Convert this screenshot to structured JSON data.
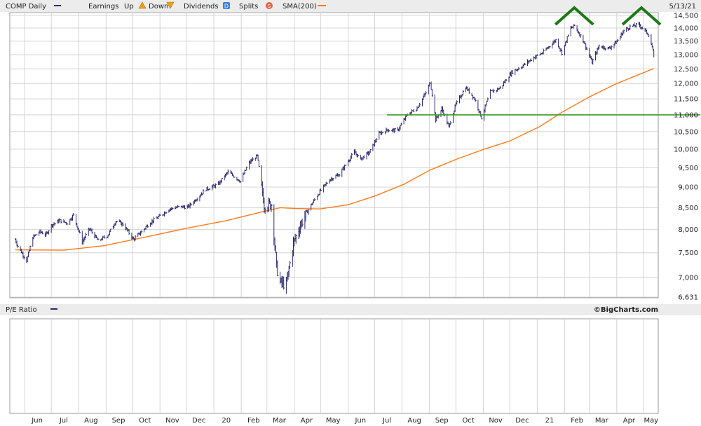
{
  "legend": {
    "series_label": "COMP Daily",
    "earnings_label": "Earnings",
    "earnings_up_label": "Up",
    "earnings_down_label": "Down",
    "dividends_label": "Dividends",
    "dividends_icon": "D",
    "splits_label": "Splits",
    "splits_icon": "S",
    "sma_label": "SMA(200)",
    "date": "5/13/21"
  },
  "pe_panel": {
    "label": "P/E Ratio",
    "credit": "©BigCharts.com"
  },
  "colors": {
    "price": "#2b2b6e",
    "sma": "#ff7a1a",
    "reference_line": "#3f9a2a",
    "top_marks": "#1a7a14",
    "grid": "#d4d4d4",
    "legend_bg": "#ececec",
    "earnings_up": "#f0a018",
    "earnings_down": "#f0a018",
    "dividends": "#3b7fe0",
    "splits": "#e0644a"
  },
  "chart_data": {
    "type": "line",
    "title": "COMP Daily",
    "ylim": [
      6631,
      14500
    ],
    "scale": "log",
    "y_ticks": [
      14500,
      14000,
      13500,
      13000,
      12500,
      12000,
      11500,
      11000,
      10500,
      10000,
      9500,
      9000,
      8500,
      8000,
      7500,
      7000,
      6631
    ],
    "y_tick_labels": [
      "14,500",
      "14,000",
      "13,500",
      "13,000",
      "12,500",
      "12,000",
      "11,500",
      "11,000",
      "10,500",
      "10,000",
      "9,500",
      "9,000",
      "8,500",
      "8,000",
      "7,500",
      "7,000",
      "6,631"
    ],
    "x_tick_labels": [
      "Jun",
      "Jul",
      "Aug",
      "Sep",
      "Oct",
      "Nov",
      "Dec",
      "20",
      "Feb",
      "Mar",
      "Apr",
      "May",
      "Jun",
      "Jul",
      "Aug",
      "Sep",
      "Oct",
      "Nov",
      "Dec",
      "21",
      "Feb",
      "Mar",
      "Apr",
      "May"
    ],
    "grid": true,
    "series": [
      {
        "name": "COMP Daily",
        "kind": "ohlc",
        "x": [
          "2019-05-21",
          "2019-05-24",
          "2019-06-03",
          "2019-06-10",
          "2019-06-18",
          "2019-06-25",
          "2019-07-01",
          "2019-07-10",
          "2019-07-19",
          "2019-07-26",
          "2019-08-05",
          "2019-08-13",
          "2019-08-23",
          "2019-09-03",
          "2019-09-12",
          "2019-09-20",
          "2019-10-02",
          "2019-10-11",
          "2019-10-21",
          "2019-10-31",
          "2019-11-11",
          "2019-11-22",
          "2019-12-03",
          "2019-12-13",
          "2019-12-23",
          "2020-01-06",
          "2020-01-17",
          "2020-01-31",
          "2020-02-10",
          "2020-02-19",
          "2020-02-27",
          "2020-03-06",
          "2020-03-12",
          "2020-03-16",
          "2020-03-23",
          "2020-03-31",
          "2020-04-09",
          "2020-04-20",
          "2020-04-30",
          "2020-05-11",
          "2020-05-22",
          "2020-06-08",
          "2020-06-15",
          "2020-06-25",
          "2020-07-06",
          "2020-07-15",
          "2020-07-27",
          "2020-08-07",
          "2020-08-18",
          "2020-08-28",
          "2020-09-02",
          "2020-09-08",
          "2020-09-15",
          "2020-09-23",
          "2020-10-01",
          "2020-10-12",
          "2020-10-22",
          "2020-10-30",
          "2020-11-09",
          "2020-11-20",
          "2020-12-03",
          "2020-12-15",
          "2020-12-28",
          "2021-01-07",
          "2021-01-22",
          "2021-01-29",
          "2021-02-08",
          "2021-02-12",
          "2021-02-22",
          "2021-03-04",
          "2021-03-12",
          "2021-03-23",
          "2021-04-01",
          "2021-04-09",
          "2021-04-16",
          "2021-04-26",
          "2021-05-03",
          "2021-05-07",
          "2021-05-13"
        ],
        "close": [
          7785,
          7640,
          7333,
          7830,
          7950,
          7885,
          8092,
          8205,
          8146,
          8330,
          7726,
          8016,
          7751,
          7874,
          8194,
          8117,
          7785,
          7950,
          8162,
          8292,
          8464,
          8519,
          8520,
          8734,
          8945,
          9071,
          9389,
          9150,
          9628,
          9817,
          8566,
          8576,
          7201,
          6904,
          6860,
          7700,
          8153,
          8560,
          8890,
          9192,
          9324,
          9924,
          9726,
          9909,
          10433,
          10550,
          10536,
          11010,
          11210,
          11695,
          12056,
          10847,
          11190,
          10632,
          11326,
          11876,
          11506,
          10912,
          11713,
          11855,
          12377,
          12595,
          12900,
          13067,
          13543,
          13070,
          13987,
          14095,
          13533,
          12723,
          13320,
          13227,
          13480,
          13900,
          14052,
          14138,
          13895,
          13753,
          13032
        ]
      },
      {
        "name": "SMA(200)",
        "x": [
          "2019-05-21",
          "2019-07-15",
          "2019-08-30",
          "2019-10-15",
          "2019-11-29",
          "2020-01-15",
          "2020-02-28",
          "2020-03-16",
          "2020-04-03",
          "2020-04-30",
          "2020-06-01",
          "2020-07-01",
          "2020-08-03",
          "2020-09-01",
          "2020-10-01",
          "2020-11-02",
          "2020-12-01",
          "2021-01-04",
          "2021-01-29",
          "2021-03-01",
          "2021-04-01",
          "2021-05-13"
        ],
        "values": [
          7560,
          7555,
          7650,
          7830,
          8020,
          8200,
          8420,
          8500,
          8480,
          8470,
          8570,
          8780,
          9070,
          9430,
          9720,
          10000,
          10230,
          10650,
          11080,
          11560,
          12000,
          12510
        ]
      }
    ],
    "reference_lines": [
      {
        "value": 11000,
        "x_from": "2020-07-15",
        "x_to": "2021-05-13"
      }
    ],
    "annotations": [
      {
        "type": "top-chevron",
        "at": "2021-02-12"
      },
      {
        "type": "top-chevron",
        "at": "2021-04-29"
      }
    ]
  }
}
